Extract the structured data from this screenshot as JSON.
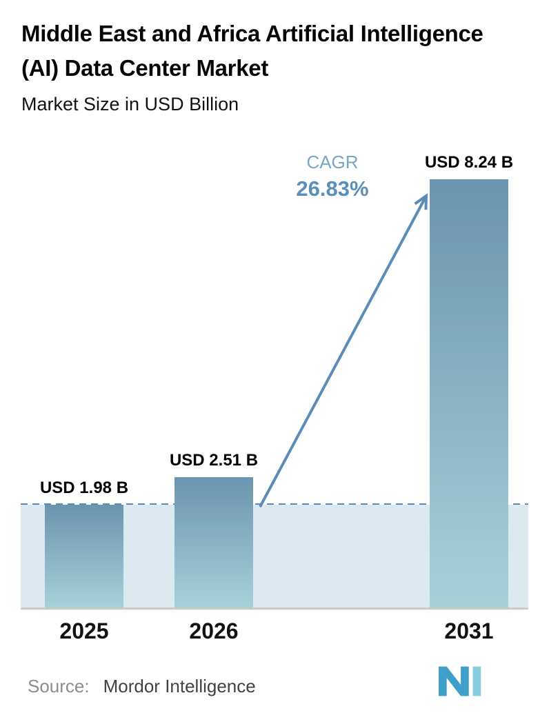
{
  "title": "Middle East and Africa Artificial Intelligence (AI) Data Center Market",
  "subtitle": "Market Size in USD Billion",
  "chart_data": {
    "type": "bar",
    "categories": [
      "2025",
      "2026",
      "2031"
    ],
    "values": [
      1.98,
      2.51,
      8.24
    ],
    "value_labels": [
      "USD 1.98 B",
      "USD 2.51 B",
      "USD 8.24 B"
    ],
    "title": "Middle East and Africa Artificial Intelligence (AI) Data Center Market",
    "subtitle": "Market Size in USD Billion",
    "xlabel": "",
    "ylabel": "Market Size in USD Billion",
    "ylim": [
      0,
      8.24
    ],
    "grid": false,
    "legend": "none",
    "annotations": {
      "cagr_label": "CAGR",
      "cagr_value": "26.83%",
      "cagr_arrow": "from top of 2026 bar to top of 2031 bar",
      "baseline_dash_value": 1.98
    },
    "colors": {
      "bar_top": "#6b94ae",
      "bar_bottom": "#a7d1d9",
      "dashed_line": "#5b8cb8",
      "shaded_region": "#dde9f0",
      "axis_line": "#cbcbcb",
      "cagr_label_text": "#7aa6c6",
      "cagr_value_text": "#5a90b8"
    }
  },
  "source": {
    "prefix": "Source:",
    "name": "Mordor Intelligence"
  },
  "logo": {
    "name": "mordor-intelligence-logo",
    "color_dark": "#3f9fc9",
    "color_light": "#85cde0"
  }
}
